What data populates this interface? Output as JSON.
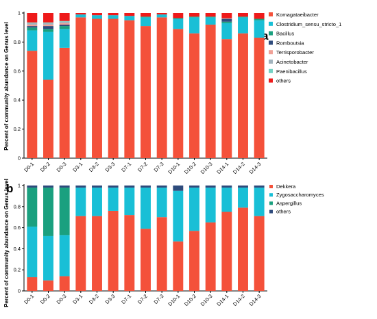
{
  "colors": {
    "Komagataeibacter": "#f4513a",
    "Clostridium_sensu_stricto_1": "#19bfd6",
    "Bacillus": "#1aa07f",
    "Romboutsia": "#2e4b7c",
    "Terrisporobacter": "#f0a197",
    "Acinetobacter": "#a2b3bd",
    "Paenibacillus": "#74d2c4",
    "others_a": "#ee1a1a",
    "Dekkera": "#f4513a",
    "Zygosaccharomyces": "#19bfd6",
    "Aspergillus": "#1aa07f",
    "others_b": "#2e4b7c"
  },
  "chart_data": [
    {
      "type": "bar",
      "stacked": true,
      "panel_label": "a",
      "ylabel": "Percent of community abundance on Genus level",
      "ylim": [
        0,
        1
      ],
      "yticks": [
        "0",
        "0.2",
        "0.4",
        "0.6",
        "0.8",
        "1"
      ],
      "legend_position": "right",
      "categories": [
        "D0-1",
        "D0-2",
        "D0-3",
        "D3-1",
        "D3-2",
        "D3-3",
        "D7-1",
        "D7-2",
        "D7-3",
        "D10-1",
        "D10-2",
        "D10-3",
        "D14-1",
        "D14-2",
        "D14-3"
      ],
      "series": [
        {
          "name": "Komagataeibacter",
          "color_key": "Komagataeibacter",
          "values": [
            0.74,
            0.54,
            0.76,
            0.97,
            0.96,
            0.96,
            0.95,
            0.91,
            0.97,
            0.89,
            0.86,
            0.92,
            0.82,
            0.86,
            0.83
          ]
        },
        {
          "name": "Clostridium_sensu_stricto_1",
          "color_key": "Clostridium_sensu_stricto_1",
          "values": [
            0.14,
            0.33,
            0.13,
            0.02,
            0.025,
            0.025,
            0.03,
            0.06,
            0.02,
            0.07,
            0.11,
            0.05,
            0.11,
            0.11,
            0.12
          ]
        },
        {
          "name": "Bacillus",
          "color_key": "Bacillus",
          "values": [
            0.02,
            0.02,
            0.02,
            0.0,
            0.0,
            0.0,
            0.0,
            0.005,
            0.0,
            0.005,
            0.005,
            0.005,
            0.01,
            0.005,
            0.01
          ]
        },
        {
          "name": "Romboutsia",
          "color_key": "Romboutsia",
          "values": [
            0.01,
            0.02,
            0.01,
            0.0,
            0.0,
            0.0,
            0.0,
            0.0,
            0.0,
            0.0,
            0.0,
            0.0,
            0.02,
            0.0,
            0.0
          ]
        },
        {
          "name": "Terrisporobacter",
          "color_key": "Terrisporobacter",
          "values": [
            0.01,
            0.01,
            0.01,
            0.0,
            0.0,
            0.0,
            0.0,
            0.0,
            0.0,
            0.0,
            0.0,
            0.0,
            0.005,
            0.0,
            0.0
          ]
        },
        {
          "name": "Acinetobacter",
          "color_key": "Acinetobacter",
          "values": [
            0.01,
            0.01,
            0.01,
            0.0,
            0.0,
            0.0,
            0.0,
            0.0,
            0.0,
            0.0,
            0.0,
            0.0,
            0.0,
            0.0,
            0.0
          ]
        },
        {
          "name": "Paenibacillus",
          "color_key": "Paenibacillus",
          "values": [
            0.005,
            0.005,
            0.005,
            0.0,
            0.0,
            0.0,
            0.0,
            0.0,
            0.0,
            0.0,
            0.0,
            0.0,
            0.0,
            0.0,
            0.0
          ]
        },
        {
          "name": "others",
          "color_key": "others_a",
          "values": [
            0.065,
            0.065,
            0.055,
            0.01,
            0.015,
            0.015,
            0.02,
            0.025,
            0.01,
            0.035,
            0.025,
            0.025,
            0.035,
            0.025,
            0.04
          ]
        }
      ]
    },
    {
      "type": "bar",
      "stacked": true,
      "panel_label": "b",
      "ylabel": "Percent of community abundance on Genus level",
      "ylim": [
        0,
        1
      ],
      "yticks": [
        "0",
        "0.2",
        "0.4",
        "0.6",
        "0.8",
        "1"
      ],
      "legend_position": "right",
      "categories": [
        "D0-1",
        "D0-2",
        "D0-3",
        "D3-1",
        "D3-2",
        "D3-3",
        "D7-1",
        "D7-2",
        "D7-3",
        "D10-1",
        "D10-2",
        "D10-3",
        "D14-1",
        "D14-2",
        "D14-3"
      ],
      "series": [
        {
          "name": "Dekkera",
          "color_key": "Dekkera",
          "values": [
            0.13,
            0.1,
            0.14,
            0.71,
            0.71,
            0.76,
            0.72,
            0.59,
            0.7,
            0.47,
            0.57,
            0.65,
            0.75,
            0.79,
            0.71
          ]
        },
        {
          "name": "Zygosaccharomyces",
          "color_key": "Zygosaccharomyces",
          "values": [
            0.48,
            0.42,
            0.39,
            0.27,
            0.27,
            0.22,
            0.26,
            0.39,
            0.28,
            0.48,
            0.41,
            0.33,
            0.23,
            0.19,
            0.27
          ]
        },
        {
          "name": "Aspergillus",
          "color_key": "Aspergillus",
          "values": [
            0.37,
            0.46,
            0.45,
            0.0,
            0.0,
            0.0,
            0.0,
            0.0,
            0.0,
            0.0,
            0.0,
            0.0,
            0.0,
            0.0,
            0.0
          ]
        },
        {
          "name": "others",
          "color_key": "others_b",
          "values": [
            0.02,
            0.02,
            0.02,
            0.02,
            0.02,
            0.02,
            0.02,
            0.02,
            0.02,
            0.05,
            0.02,
            0.02,
            0.02,
            0.02,
            0.02
          ]
        }
      ]
    }
  ]
}
